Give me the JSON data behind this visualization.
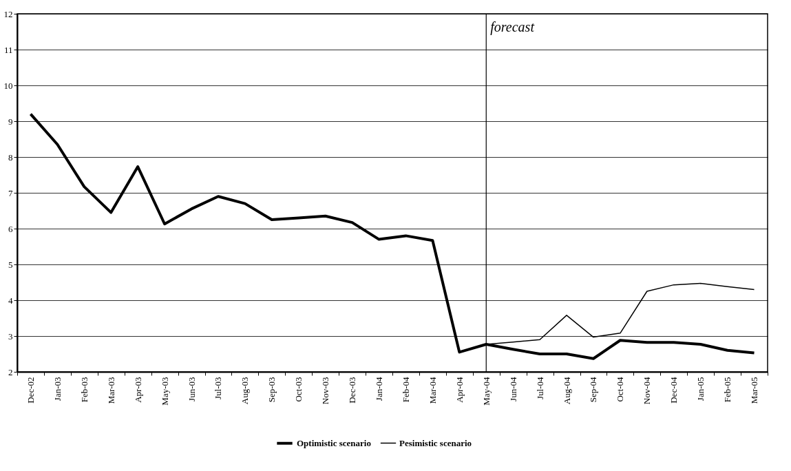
{
  "chart_data": {
    "type": "line",
    "categories": [
      "Dec-02",
      "Jan-03",
      "Feb-03",
      "Mar-03",
      "Apr-03",
      "May-03",
      "Jun-03",
      "Jul-03",
      "Aug-03",
      "Sep-03",
      "Oct-03",
      "Nov-03",
      "Dec-03",
      "Jan-04",
      "Feb-04",
      "Mar-04",
      "Apr-04",
      "May-04",
      "Jun-04",
      "Jul-04",
      "Aug-04",
      "Sep-04",
      "Oct-04",
      "Nov-04",
      "Dec-04",
      "Jan-05",
      "Feb-05",
      "Mar-05"
    ],
    "series": [
      {
        "name": "Optimistic scenario",
        "color": "#000000",
        "values": [
          9.2,
          8.35,
          7.17,
          6.45,
          7.73,
          6.13,
          6.55,
          6.9,
          6.7,
          6.25,
          6.3,
          6.35,
          6.17,
          5.7,
          5.8,
          5.67,
          2.55,
          2.77,
          2.63,
          2.5,
          2.5,
          2.37,
          2.88,
          2.82,
          2.82,
          2.77,
          2.6,
          2.53
        ]
      },
      {
        "name": "Pesimistic scenario",
        "color": "#000000",
        "values": [
          null,
          null,
          null,
          null,
          null,
          null,
          null,
          null,
          null,
          null,
          null,
          null,
          null,
          null,
          null,
          null,
          null,
          2.77,
          2.83,
          2.9,
          3.58,
          2.97,
          3.08,
          4.25,
          4.43,
          4.47,
          4.38,
          4.3
        ]
      }
    ],
    "ylim": [
      2,
      12
    ],
    "yticks": [
      2,
      3,
      4,
      5,
      6,
      7,
      8,
      9,
      10,
      11,
      12
    ],
    "grid": "y",
    "legend": "bottom",
    "marker": "none",
    "line_style": "solid",
    "ref_lines": [
      {
        "axis": "x",
        "value": "May-04",
        "label": "forecast"
      }
    ]
  }
}
